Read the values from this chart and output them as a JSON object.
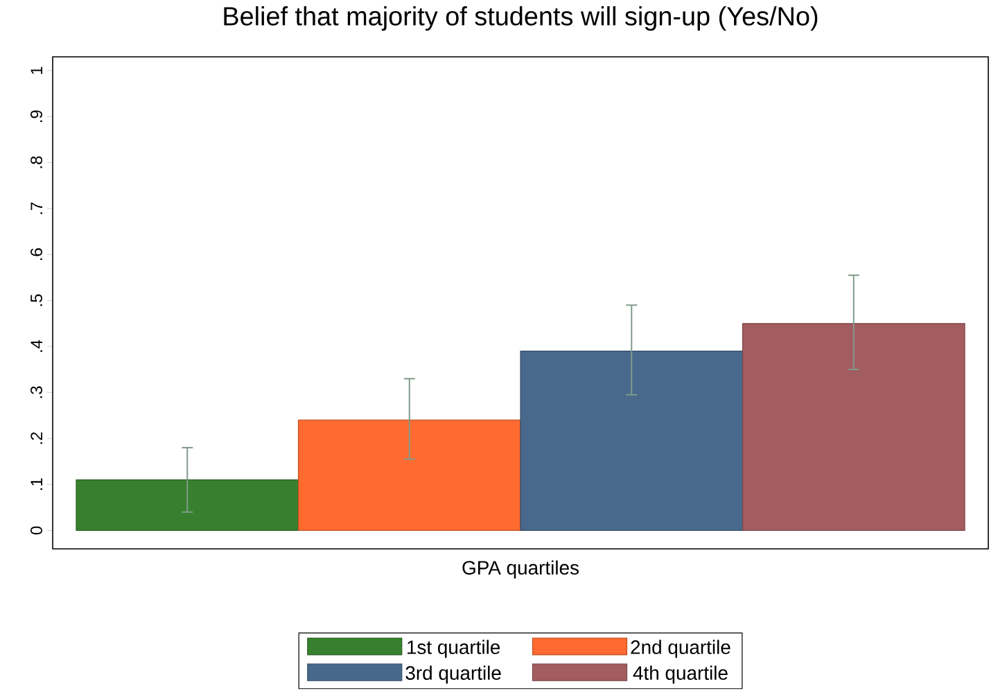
{
  "chart_data": {
    "type": "bar",
    "title": "Belief that majority of students will sign-up (Yes/No)",
    "xlabel": "GPA quartiles",
    "categories": [
      null
    ],
    "series": [
      {
        "name": "1st quartile",
        "color": "#38802f",
        "values": [
          0.11
        ],
        "errors": [
          [
            0.04,
            0.18
          ]
        ]
      },
      {
        "name": "2nd quartile",
        "color": "#ff6a30",
        "values": [
          0.24
        ],
        "errors": [
          [
            0.155,
            0.33
          ]
        ]
      },
      {
        "name": "3rd quartile",
        "color": "#48698c",
        "values": [
          0.39
        ],
        "errors": [
          [
            0.295,
            0.49
          ]
        ]
      },
      {
        "name": "4th quartile",
        "color": "#a35c60",
        "values": [
          0.45
        ],
        "errors": [
          [
            0.35,
            0.555
          ]
        ]
      }
    ],
    "ylim": [
      -0.04,
      1.03
    ],
    "yticks": [
      0,
      {
        "value": 0.1,
        "label": ".1"
      },
      {
        "value": 0.2,
        "label": ".2"
      },
      {
        "value": 0.3,
        "label": ".3"
      },
      {
        "value": 0.4,
        "label": ".4"
      },
      {
        "value": 0.5,
        "label": ".5"
      },
      {
        "value": 0.6,
        "label": ".6"
      },
      {
        "value": 0.7,
        "label": ".7"
      },
      {
        "value": 0.8,
        "label": ".8"
      },
      {
        "value": 0.9,
        "label": ".9"
      },
      1
    ],
    "grid": false,
    "legend": "bottom"
  }
}
